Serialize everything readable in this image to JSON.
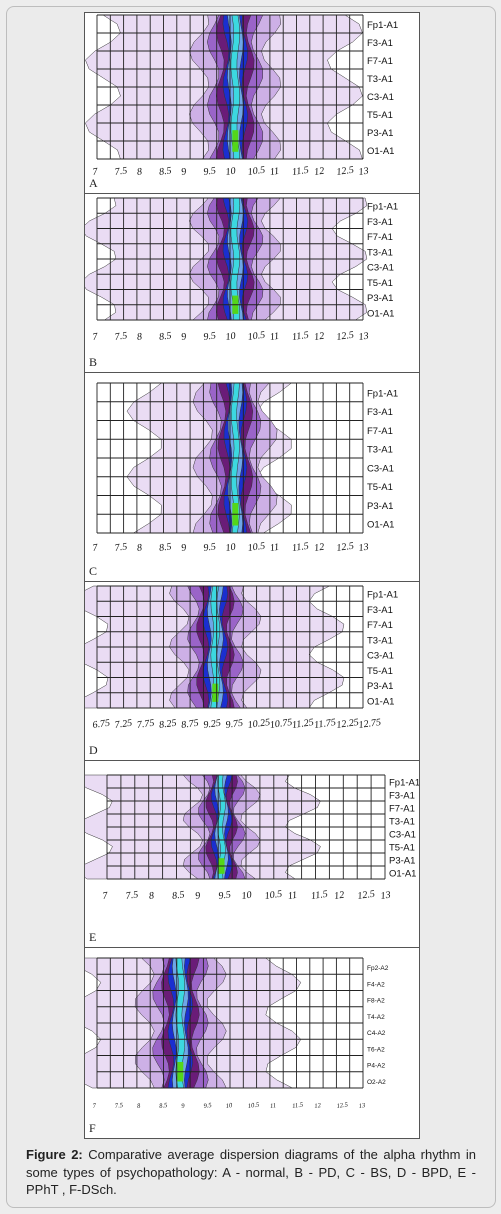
{
  "figure": {
    "label": "Figure 2:",
    "caption": "Comparative average dispersion diagrams of the alpha rhythm in some types of psychopathology: A - normal, B - PD, C - BS, D - BPD, E - PPhT , F-DSch.",
    "colors": {
      "pale": "#e6d6f2",
      "light": "#cdb0e6",
      "mid": "#9a64c8",
      "dark": "#6a1c78",
      "blue": "#1a2fd0",
      "lightblue": "#6ea6e8",
      "cyan": "#3cd8e0",
      "green": "#54d61a"
    },
    "panels": [
      {
        "label": "A",
        "channels": [
          "Fp1-A1",
          "F3-A1",
          "F7-A1",
          "T3-A1",
          "C3-A1",
          "T5-A1",
          "P3-A1",
          "O1-A1"
        ],
        "xticks": [
          "7",
          "7.5",
          "8",
          "8.5",
          "9",
          "9.5",
          "10",
          "10.5",
          "11",
          "11.5",
          "12",
          "12.5",
          "13"
        ]
      },
      {
        "label": "B",
        "channels": [
          "Fp1-A1",
          "F3-A1",
          "F7-A1",
          "T3-A1",
          "C3-A1",
          "T5-A1",
          "P3-A1",
          "O1-A1"
        ],
        "xticks": [
          "7",
          "7.5",
          "8",
          "8.5",
          "9",
          "9.5",
          "10",
          "10.5",
          "11",
          "11.5",
          "12",
          "12.5",
          "13"
        ]
      },
      {
        "label": "C",
        "channels": [
          "Fp1-A1",
          "F3-A1",
          "F7-A1",
          "T3-A1",
          "C3-A1",
          "T5-A1",
          "P3-A1",
          "O1-A1"
        ],
        "xticks": [
          "7",
          "7.5",
          "8",
          "8.5",
          "9",
          "9.5",
          "10",
          "10.5",
          "11",
          "11.5",
          "12",
          "12.5",
          "13"
        ]
      },
      {
        "label": "D",
        "channels": [
          "Fp1-A1",
          "F3-A1",
          "F7-A1",
          "T3-A1",
          "C3-A1",
          "T5-A1",
          "P3-A1",
          "O1-A1"
        ],
        "xticks": [
          "6.75",
          "7.25",
          "7.75",
          "8.25",
          "8.75",
          "9.25",
          "9.75",
          "10.25",
          "10.75",
          "11.25",
          "11.75",
          "12.25",
          "12.75"
        ]
      },
      {
        "label": "E",
        "channels": [
          "Fp1-A1",
          "F3-A1",
          "F7-A1",
          "T3-A1",
          "C3-A1",
          "T5-A1",
          "P3-A1",
          "O1-A1"
        ],
        "xticks": [
          "7",
          "7.5",
          "8",
          "8.5",
          "9",
          "9.5",
          "10",
          "10.5",
          "11",
          "11.5",
          "12",
          "12.5",
          "13"
        ]
      },
      {
        "label": "F",
        "channels": [
          "Fp2-A2",
          "F4-A2",
          "F8-A2",
          "T4-A2",
          "C4-A2",
          "T6-A2",
          "P4-A2",
          "O2-A2"
        ],
        "xticks": [
          "7",
          "7.5",
          "8",
          "8.5",
          "9",
          "9.5",
          "10",
          "10.5",
          "11",
          "11.5",
          "12",
          "12.5",
          "13"
        ]
      }
    ]
  }
}
